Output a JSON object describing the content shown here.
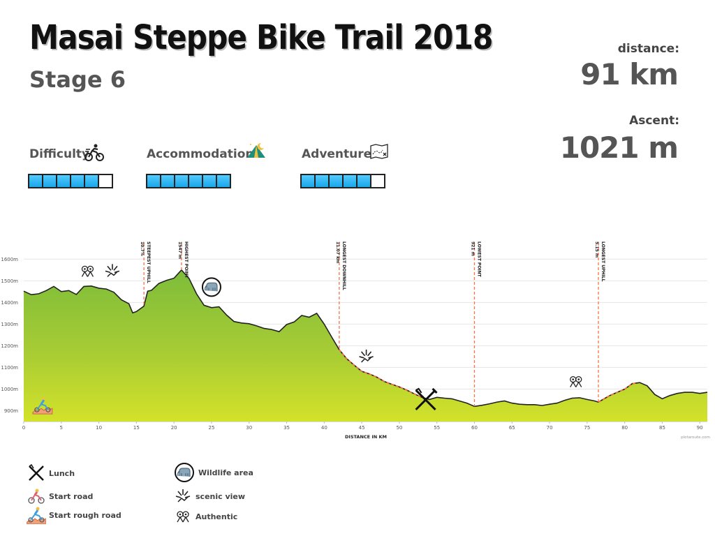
{
  "header": {
    "title": "Masai Steppe Bike Trail 2018",
    "stage": "Stage 6",
    "distance_label": "distance:",
    "distance_value": "91 km",
    "ascent_label": "Ascent:",
    "ascent_value": "1021 m"
  },
  "ratings": [
    {
      "label": "Difficulty",
      "icon": "cyclist-icon",
      "level": 5,
      "max": 6
    },
    {
      "label": "Accommodation",
      "icon": "tent-icon",
      "level": 6,
      "max": 6
    },
    {
      "label": "Adventure",
      "icon": "map-icon",
      "level": 5,
      "max": 6
    }
  ],
  "chart_data": {
    "type": "area",
    "xlabel": "DISTANCE IN KM",
    "ylabel": "",
    "xlim": [
      0,
      91
    ],
    "ylim": [
      850,
      1630
    ],
    "xticks": [
      0,
      5,
      10,
      15,
      20,
      25,
      30,
      35,
      40,
      45,
      50,
      55,
      60,
      65,
      70,
      75,
      80,
      85,
      90
    ],
    "yticks": [
      900,
      1000,
      1100,
      1200,
      1300,
      1400,
      1500,
      1600
    ],
    "ytick_labels": [
      "900m",
      "1000m",
      "1100m",
      "1200m",
      "1300m",
      "1400m",
      "1500m",
      "1600m"
    ],
    "credit": "plotaroute.com",
    "profile": {
      "x": [
        0,
        1,
        2,
        3,
        4,
        5,
        6,
        7,
        8,
        9,
        10,
        11,
        12,
        13,
        14,
        14.5,
        15,
        16,
        16.5,
        17,
        18,
        19,
        20,
        21,
        22,
        23,
        24,
        25,
        26,
        27,
        28,
        29,
        30,
        31,
        32,
        33,
        34,
        35,
        36,
        37,
        38,
        39,
        40,
        41,
        42,
        43,
        44,
        45,
        46,
        47,
        48,
        49,
        50,
        51,
        52,
        53,
        54,
        55,
        56,
        57,
        58,
        59,
        60,
        61,
        62,
        63,
        64,
        65,
        66,
        67,
        68,
        69,
        70,
        71,
        72,
        73,
        74,
        75,
        76,
        76.5,
        77,
        78,
        79,
        80,
        81,
        82,
        83,
        84,
        85,
        86,
        87,
        88,
        89,
        90,
        91
      ],
      "y": [
        1452,
        1436,
        1440,
        1455,
        1474,
        1450,
        1455,
        1437,
        1474,
        1476,
        1466,
        1462,
        1447,
        1412,
        1394,
        1352,
        1358,
        1383,
        1452,
        1456,
        1488,
        1502,
        1512,
        1550,
        1511,
        1440,
        1387,
        1376,
        1380,
        1342,
        1312,
        1305,
        1302,
        1292,
        1280,
        1275,
        1265,
        1298,
        1310,
        1340,
        1332,
        1350,
        1300,
        1240,
        1182,
        1140,
        1110,
        1082,
        1070,
        1055,
        1035,
        1022,
        1010,
        995,
        978,
        962,
        952,
        962,
        958,
        955,
        945,
        935,
        920,
        925,
        932,
        940,
        945,
        935,
        930,
        928,
        928,
        924,
        930,
        935,
        948,
        958,
        960,
        952,
        945,
        940,
        950,
        970,
        985,
        1000,
        1025,
        1030,
        1015,
        975,
        955,
        970,
        980,
        985,
        985,
        980,
        985
      ]
    },
    "markers": [
      {
        "x": 16,
        "label": "STEEPEST UPHILL",
        "value": "10.7%"
      },
      {
        "x": 21,
        "label": "HIGHEST POINT",
        "value": "1547 m"
      },
      {
        "x": 42,
        "label": "LONGEST DOWNHILL",
        "value": "11.07 km"
      },
      {
        "x": 60,
        "label": "LOWEST POINT",
        "value": "921 m"
      },
      {
        "x": 76.5,
        "label": "LONGEST UPHILL",
        "value": "5.15 m"
      }
    ],
    "highlight_segments": [
      [
        42,
        53
      ],
      [
        76.5,
        81.5
      ]
    ],
    "map_icons": [
      {
        "icon": "authentic-icon",
        "x": 8.5,
        "y": 1545
      },
      {
        "icon": "scenic-view-icon",
        "x": 11.8,
        "y": 1545
      },
      {
        "icon": "wildlife-icon",
        "x": 25,
        "y": 1471
      },
      {
        "icon": "scenic-view-icon",
        "x": 45.6,
        "y": 1150
      },
      {
        "icon": "lunch-icon",
        "x": 53.5,
        "y": 950
      },
      {
        "icon": "authentic-icon",
        "x": 73.5,
        "y": 1035
      },
      {
        "icon": "start-rough-road-icon",
        "x": 2.5,
        "y": 930
      }
    ]
  },
  "legend": [
    {
      "icon": "lunch-icon",
      "label": "Lunch"
    },
    {
      "icon": "start-road-icon",
      "label": "Start road"
    },
    {
      "icon": "start-rough-road-icon",
      "label": "Start rough road"
    },
    {
      "icon": "wildlife-icon",
      "label": "Wildlife area"
    },
    {
      "icon": "scenic-view-icon",
      "label": "scenic view"
    },
    {
      "icon": "authentic-icon",
      "label": "Authentic"
    }
  ]
}
